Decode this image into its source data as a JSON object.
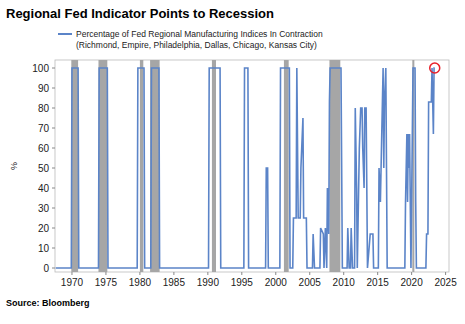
{
  "chart_data": {
    "type": "line",
    "title": "Regional Fed Indicator Points to Recession",
    "y_label": "%",
    "source": "Source: Bloomberg",
    "xlim": [
      1967.5,
      2025.5
    ],
    "xticks": [
      1970,
      1975,
      1980,
      1985,
      1990,
      1995,
      2000,
      2005,
      2010,
      2015,
      2020,
      2025
    ],
    "ylim": [
      -2,
      104
    ],
    "yticks": [
      0,
      10,
      20,
      30,
      40,
      50,
      60,
      70,
      80,
      90,
      100
    ],
    "grid": false,
    "legend": "top-left",
    "recessions": [
      [
        1969.9,
        1970.9
      ],
      [
        1973.9,
        1975.2
      ],
      [
        1980.0,
        1980.5
      ],
      [
        1981.5,
        1982.9
      ],
      [
        1990.6,
        1991.2
      ],
      [
        2001.2,
        2001.9
      ],
      [
        2007.9,
        2009.5
      ],
      [
        2020.1,
        2020.4
      ]
    ],
    "x": [
      1967.6,
      1969.9,
      1970.0,
      1970.9,
      1971.0,
      1973.9,
      1974.0,
      1975.2,
      1975.3,
      1979.6,
      1979.7,
      1980.6,
      1980.7,
      1981.6,
      1981.7,
      1982.8,
      1982.9,
      1990.1,
      1990.2,
      1991.8,
      1991.9,
      1995.3,
      1995.4,
      1995.9,
      1996.0,
      1998.5,
      1998.6,
      1998.8,
      1998.9,
      2000.6,
      2000.7,
      2002.0,
      2002.1,
      2002.5,
      2002.6,
      2003.0,
      2003.1,
      2003.3,
      2003.6,
      2003.7,
      2004.0,
      2004.1,
      2004.5,
      2004.6,
      2005.4,
      2005.5,
      2005.7,
      2006.5,
      2006.6,
      2007.0,
      2007.1,
      2007.3,
      2007.5,
      2007.6,
      2007.8,
      2007.9,
      2008.0,
      2009.6,
      2009.7,
      2009.8,
      2010.5,
      2010.6,
      2010.8,
      2011.0,
      2011.1,
      2011.3,
      2011.6,
      2011.7,
      2011.9,
      2012.0,
      2012.3,
      2012.5,
      2012.7,
      2012.8,
      2013.0,
      2013.1,
      2013.3,
      2013.4,
      2013.5,
      2013.9,
      2014.3,
      2014.4,
      2015.1,
      2015.2,
      2015.4,
      2015.6,
      2015.8,
      2015.9,
      2016.0,
      2016.2,
      2016.3,
      2016.4,
      2019.0,
      2019.1,
      2019.3,
      2019.4,
      2019.5,
      2019.6,
      2019.7,
      2019.8,
      2019.9,
      2020.1,
      2020.2,
      2020.5,
      2020.6,
      2020.7,
      2022.1,
      2022.2,
      2022.4,
      2022.5,
      2022.9,
      2023.0,
      2023.2,
      2023.3,
      2023.4
    ],
    "series": [
      {
        "name": "Percentage of Fed Regional Manufacturing Indices In Contraction (Richmond, Empire, Philadelphia, Dallas, Chicago, Kansas City)",
        "color": "#5b84c8",
        "values": [
          0,
          0,
          100,
          100,
          0,
          0,
          100,
          100,
          0,
          0,
          100,
          100,
          0,
          0,
          100,
          100,
          0,
          0,
          100,
          100,
          0,
          0,
          100,
          100,
          0,
          0,
          50,
          50,
          0,
          0,
          100,
          100,
          0,
          0,
          25,
          25,
          100,
          25,
          25,
          50,
          75,
          25,
          25,
          0,
          0,
          17,
          0,
          0,
          20,
          17,
          0,
          20,
          0,
          40,
          17,
          83,
          100,
          100,
          50,
          0,
          0,
          20,
          0,
          0,
          20,
          0,
          0,
          80,
          40,
          0,
          60,
          80,
          80,
          60,
          40,
          80,
          80,
          40,
          0,
          17,
          17,
          0,
          0,
          50,
          33,
          67,
          100,
          50,
          83,
          100,
          50,
          0,
          0,
          33,
          67,
          33,
          67,
          50,
          67,
          33,
          0,
          67,
          100,
          100,
          33,
          0,
          0,
          17,
          17,
          83,
          83,
          100,
          67,
          100,
          100
        ]
      }
    ]
  }
}
